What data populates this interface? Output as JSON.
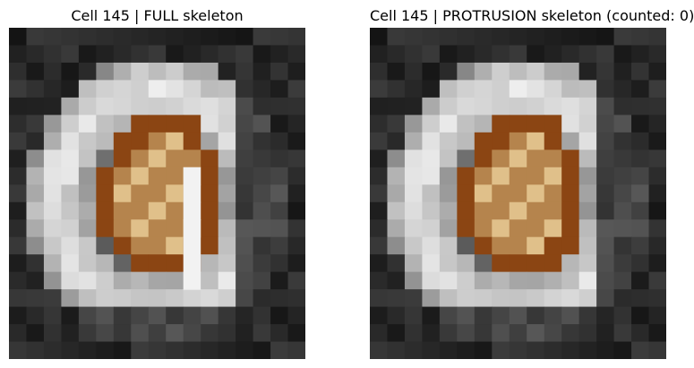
{
  "panels": [
    {
      "id": "full",
      "title": "Cell 145 | FULL skeleton",
      "image": "grayscale microscopy crop with orange cell-mask overlay and light vertical skeleton line"
    },
    {
      "id": "protrusion",
      "title": "Cell 145 | PROTRUSION skeleton (counted: 0)",
      "image": "same grayscale microscopy crop with orange cell-mask overlay, no protrusion skeleton drawn"
    }
  ],
  "colors": {
    "mask_dark": "#8b4513",
    "mask_mid": "#b5844d",
    "mask_light": "#e0c08a",
    "skeleton": "#f2f2f2"
  }
}
